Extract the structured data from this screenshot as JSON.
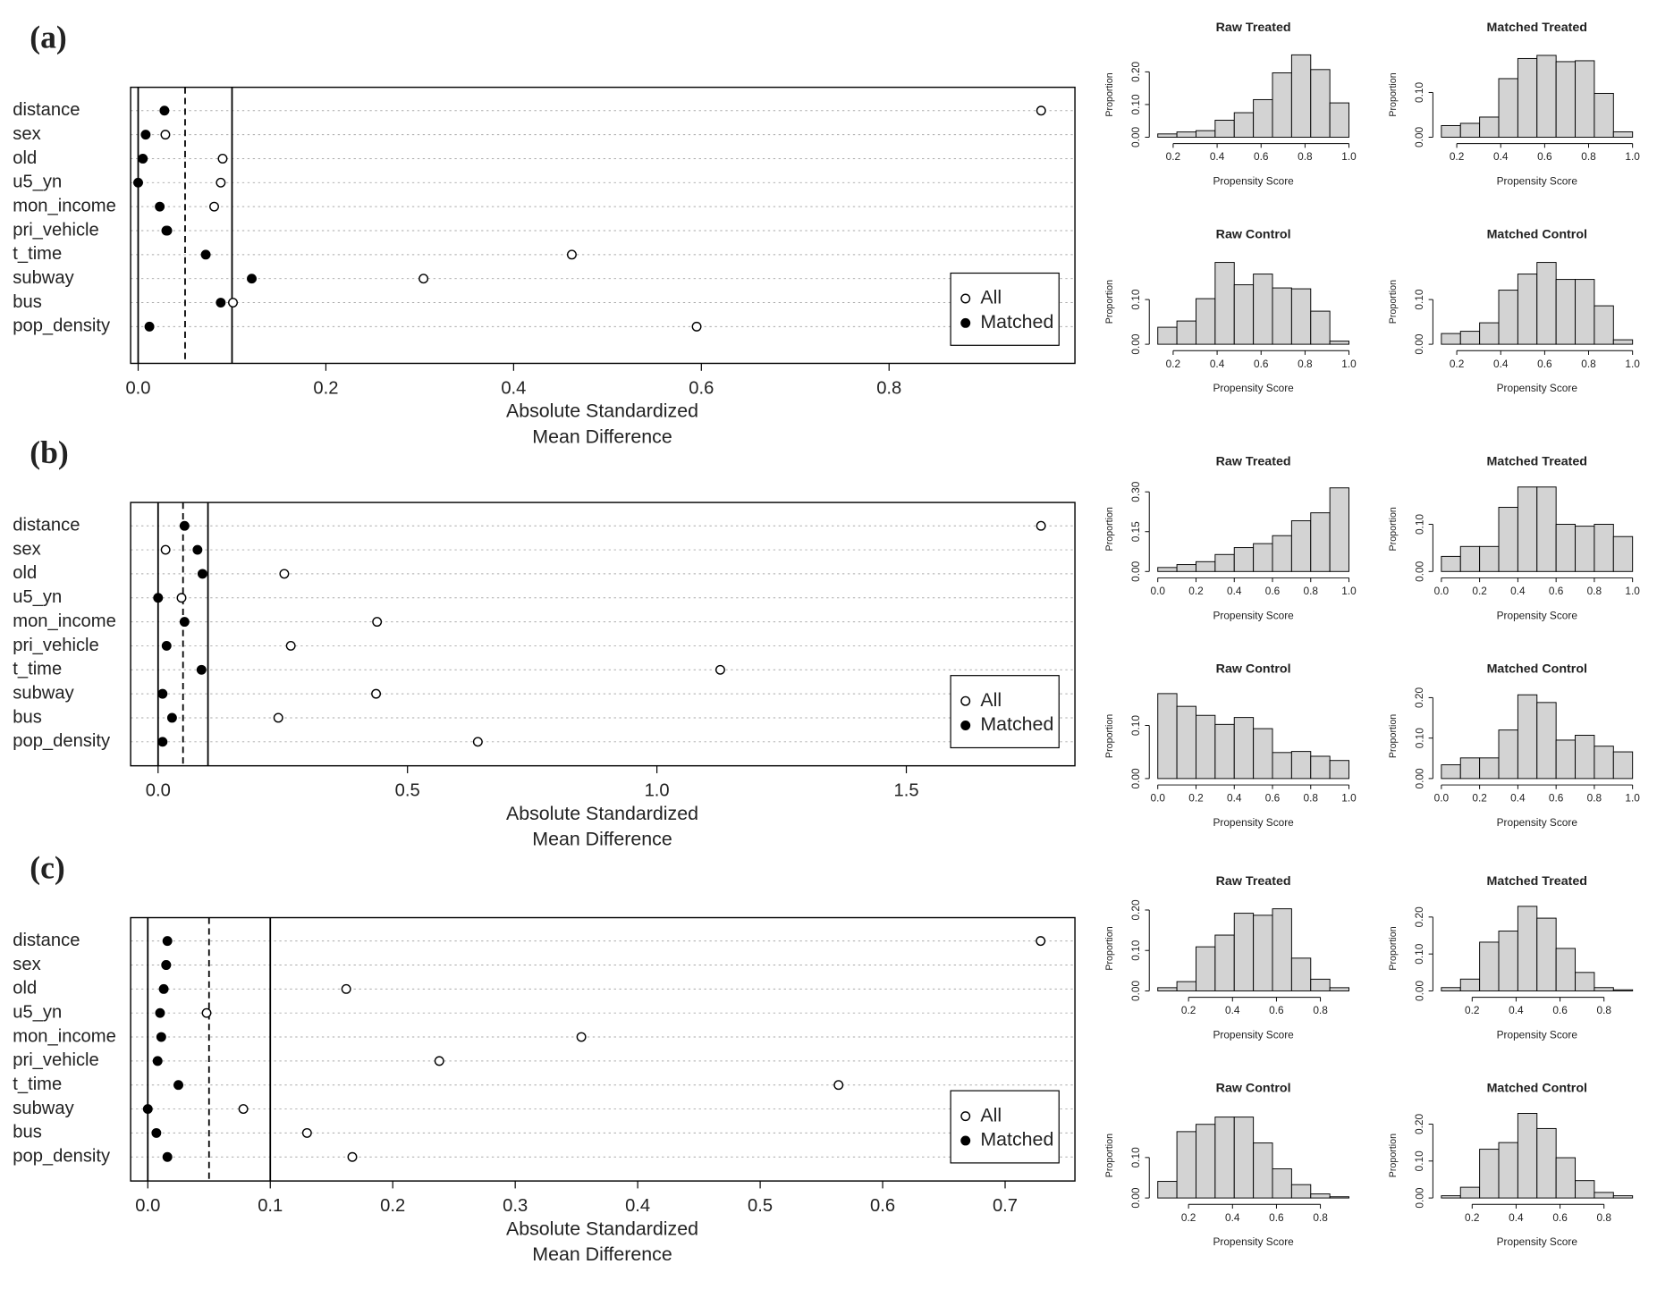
{
  "chart_data": [
    {
      "type": "dot",
      "label": "(a)",
      "xlabel": [
        "Absolute Standardized",
        "Mean Difference"
      ],
      "categories": [
        "distance",
        "sex",
        "old",
        "u5_yn",
        "mon_income",
        "pri_vehicle",
        "t_time",
        "subway",
        "bus",
        "pop_density"
      ],
      "series": [
        {
          "name": "All",
          "color": "#000000",
          "filled": false,
          "values": [
            0.962,
            0.029,
            0.09,
            0.088,
            0.081,
            0.03,
            0.462,
            0.304,
            0.101,
            0.595
          ]
        },
        {
          "name": "Matched",
          "color": "#000000",
          "filled": true,
          "values": [
            0.028,
            0.008,
            0.005,
            0.0,
            0.023,
            0.031,
            0.072,
            0.121,
            0.088,
            0.012
          ]
        }
      ],
      "xlim": [
        -0.008,
        0.998
      ],
      "xticks": [
        {
          "value": 0,
          "label": "0.0"
        },
        0.2,
        0.4,
        0.6,
        0.8
      ],
      "ref_lines": [
        {
          "value": 0,
          "dashed": false
        },
        {
          "value": 0.05,
          "dashed": true
        },
        {
          "value": 0.1,
          "dashed": false
        }
      ],
      "grid": true,
      "legend": "lower right"
    },
    {
      "type": "histogram",
      "title": "Raw Treated",
      "xlabel": "Propensity Score",
      "ylabel": "Proportion",
      "color": "#d3d3d3",
      "bins": [
        0.13,
        0.217,
        0.304,
        0.391,
        0.478,
        0.565,
        0.652,
        0.739,
        0.826,
        0.913,
        1.0
      ],
      "values": [
        0.01,
        0.016,
        0.02,
        0.052,
        0.075,
        0.115,
        0.197,
        0.252,
        0.207,
        0.105
      ],
      "xlim": [
        0.13,
        1.0
      ],
      "xticks": [
        0.2,
        0.4,
        0.6,
        0.8,
        {
          "value": 1,
          "label": "1.0"
        }
      ],
      "ylim": [
        0,
        0.26
      ],
      "yticks": [
        {
          "value": 0,
          "label": "0.00"
        },
        {
          "value": 0.1,
          "label": "0.10"
        },
        {
          "value": 0.2,
          "label": "0.20"
        }
      ]
    },
    {
      "type": "histogram",
      "title": "Matched Treated",
      "xlabel": "Propensity Score",
      "ylabel": "Proportion",
      "color": "#d3d3d3",
      "bins": [
        0.13,
        0.217,
        0.304,
        0.391,
        0.478,
        0.565,
        0.652,
        0.739,
        0.826,
        0.913,
        1.0
      ],
      "values": [
        0.026,
        0.031,
        0.045,
        0.131,
        0.176,
        0.183,
        0.169,
        0.171,
        0.098,
        0.012
      ],
      "xlim": [
        0.13,
        1.0
      ],
      "xticks": [
        0.2,
        0.4,
        0.6,
        0.8,
        {
          "value": 1,
          "label": "1.0"
        }
      ],
      "ylim": [
        0,
        0.19
      ],
      "yticks": [
        {
          "value": 0,
          "label": "0.00"
        },
        {
          "value": 0.1,
          "label": "0.10"
        }
      ]
    },
    {
      "type": "histogram",
      "title": "Raw Control",
      "xlabel": "Propensity Score",
      "ylabel": "Proportion",
      "color": "#d3d3d3",
      "bins": [
        0.13,
        0.217,
        0.304,
        0.391,
        0.478,
        0.565,
        0.652,
        0.739,
        0.826,
        0.913,
        1.0
      ],
      "values": [
        0.038,
        0.052,
        0.102,
        0.183,
        0.133,
        0.157,
        0.126,
        0.124,
        0.074,
        0.007
      ],
      "xlim": [
        0.13,
        1.0
      ],
      "xticks": [
        0.2,
        0.4,
        0.6,
        0.8,
        {
          "value": 1,
          "label": "1.0"
        }
      ],
      "ylim": [
        0,
        0.19
      ],
      "yticks": [
        {
          "value": 0,
          "label": "0.00"
        },
        {
          "value": 0.1,
          "label": "0.10"
        }
      ]
    },
    {
      "type": "histogram",
      "title": "Matched Control",
      "xlabel": "Propensity Score",
      "ylabel": "Proportion",
      "color": "#d3d3d3",
      "bins": [
        0.13,
        0.217,
        0.304,
        0.391,
        0.478,
        0.565,
        0.652,
        0.739,
        0.826,
        0.913,
        1.0
      ],
      "values": [
        0.024,
        0.029,
        0.048,
        0.121,
        0.157,
        0.183,
        0.145,
        0.145,
        0.086,
        0.01
      ],
      "xlim": [
        0.13,
        1.0
      ],
      "xticks": [
        0.2,
        0.4,
        0.6,
        0.8,
        {
          "value": 1,
          "label": "1.0"
        }
      ],
      "ylim": [
        0,
        0.19
      ],
      "yticks": [
        {
          "value": 0,
          "label": "0.00"
        },
        {
          "value": 0.1,
          "label": "0.10"
        }
      ]
    },
    {
      "type": "dot",
      "label": "(b)",
      "xlabel": [
        "Absolute Standardized",
        "Mean Difference"
      ],
      "categories": [
        "distance",
        "sex",
        "old",
        "u5_yn",
        "mon_income",
        "pri_vehicle",
        "t_time",
        "subway",
        "bus",
        "pop_density"
      ],
      "series": [
        {
          "name": "All",
          "color": "#000000",
          "filled": false,
          "values": [
            1.77,
            0.015,
            0.253,
            0.047,
            0.439,
            0.266,
            1.127,
            0.437,
            0.241,
            0.641
          ]
        },
        {
          "name": "Matched",
          "color": "#000000",
          "filled": true,
          "values": [
            0.053,
            0.079,
            0.089,
            0.0,
            0.053,
            0.017,
            0.087,
            0.009,
            0.028,
            0.009
          ]
        }
      ],
      "xlim": [
        -0.055,
        1.838
      ],
      "xticks": [
        {
          "value": 0,
          "label": "0.0"
        },
        0.5,
        {
          "value": 1,
          "label": "1.0"
        },
        1.5
      ],
      "ref_lines": [
        {
          "value": 0,
          "dashed": false
        },
        {
          "value": 0.05,
          "dashed": true
        },
        {
          "value": 0.1,
          "dashed": false
        }
      ],
      "grid": true,
      "legend": "lower right"
    },
    {
      "type": "histogram",
      "title": "Raw Treated",
      "xlabel": "Propensity Score",
      "ylabel": "Proportion",
      "color": "#d3d3d3",
      "bins": [
        0,
        0.1,
        0.2,
        0.3,
        0.4,
        0.5,
        0.6,
        0.7,
        0.8,
        0.9,
        1.0
      ],
      "values": [
        0.015,
        0.026,
        0.037,
        0.064,
        0.09,
        0.105,
        0.135,
        0.191,
        0.221,
        0.315
      ],
      "xlim": [
        0,
        1
      ],
      "xticks": [
        {
          "value": 0,
          "label": "0.0"
        },
        0.2,
        0.4,
        0.6,
        0.8,
        {
          "value": 1,
          "label": "1.0"
        }
      ],
      "ylim": [
        0,
        0.32
      ],
      "yticks": [
        {
          "value": 0,
          "label": "0.00"
        },
        0.15,
        {
          "value": 0.3,
          "label": "0.30"
        }
      ]
    },
    {
      "type": "histogram",
      "title": "Matched Treated",
      "xlabel": "Propensity Score",
      "ylabel": "Proportion",
      "color": "#d3d3d3",
      "bins": [
        0,
        0.1,
        0.2,
        0.3,
        0.4,
        0.5,
        0.6,
        0.7,
        0.8,
        0.9,
        1.0
      ],
      "values": [
        0.032,
        0.053,
        0.053,
        0.136,
        0.179,
        0.179,
        0.1,
        0.096,
        0.1,
        0.074
      ],
      "xlim": [
        0,
        1
      ],
      "xticks": [
        {
          "value": 0,
          "label": "0.0"
        },
        0.2,
        0.4,
        0.6,
        0.8,
        {
          "value": 1,
          "label": "1.0"
        }
      ],
      "ylim": [
        0,
        0.18
      ],
      "yticks": [
        {
          "value": 0,
          "label": "0.00"
        },
        {
          "value": 0.1,
          "label": "0.10"
        }
      ]
    },
    {
      "type": "histogram",
      "title": "Raw Control",
      "xlabel": "Propensity Score",
      "ylabel": "Proportion",
      "color": "#d3d3d3",
      "bins": [
        0,
        0.1,
        0.2,
        0.3,
        0.4,
        0.5,
        0.6,
        0.7,
        0.8,
        0.9,
        1.0
      ],
      "values": [
        0.16,
        0.136,
        0.119,
        0.102,
        0.115,
        0.094,
        0.049,
        0.051,
        0.042,
        0.034
      ],
      "xlim": [
        0,
        1
      ],
      "xticks": [
        {
          "value": 0,
          "label": "0.0"
        },
        0.2,
        0.4,
        0.6,
        0.8,
        {
          "value": 1,
          "label": "1.0"
        }
      ],
      "ylim": [
        0,
        0.16
      ],
      "yticks": [
        {
          "value": 0,
          "label": "0.00"
        },
        {
          "value": 0.1,
          "label": "0.10"
        }
      ]
    },
    {
      "type": "histogram",
      "title": "Matched Control",
      "xlabel": "Propensity Score",
      "ylabel": "Proportion",
      "color": "#d3d3d3",
      "bins": [
        0,
        0.1,
        0.2,
        0.3,
        0.4,
        0.5,
        0.6,
        0.7,
        0.8,
        0.9,
        1.0
      ],
      "values": [
        0.034,
        0.051,
        0.051,
        0.12,
        0.207,
        0.188,
        0.095,
        0.107,
        0.08,
        0.066
      ],
      "xlim": [
        0,
        1
      ],
      "xticks": [
        {
          "value": 0,
          "label": "0.0"
        },
        0.2,
        0.4,
        0.6,
        0.8,
        {
          "value": 1,
          "label": "1.0"
        }
      ],
      "ylim": [
        0,
        0.21
      ],
      "yticks": [
        {
          "value": 0,
          "label": "0.00"
        },
        {
          "value": 0.1,
          "label": "0.10"
        },
        {
          "value": 0.2,
          "label": "0.20"
        }
      ]
    },
    {
      "type": "dot",
      "label": "(c)",
      "xlabel": [
        "Absolute Standardized",
        "Mean Difference"
      ],
      "categories": [
        "distance",
        "sex",
        "old",
        "u5_yn",
        "mon_income",
        "pri_vehicle",
        "t_time",
        "subway",
        "bus",
        "pop_density"
      ],
      "series": [
        {
          "name": "All",
          "color": "#000000",
          "filled": false,
          "values": [
            0.729,
            0.015,
            0.162,
            0.048,
            0.354,
            0.238,
            0.564,
            0.078,
            0.13,
            0.167
          ]
        },
        {
          "name": "Matched",
          "color": "#000000",
          "filled": true,
          "values": [
            0.016,
            0.015,
            0.013,
            0.01,
            0.011,
            0.008,
            0.025,
            0.0,
            0.007,
            0.016
          ]
        }
      ],
      "xlim": [
        -0.014,
        0.757
      ],
      "xticks": [
        {
          "value": 0,
          "label": "0.0"
        },
        0.1,
        0.2,
        0.3,
        0.4,
        0.5,
        0.6,
        0.7
      ],
      "ref_lines": [
        {
          "value": 0,
          "dashed": false
        },
        {
          "value": 0.05,
          "dashed": true
        },
        {
          "value": 0.1,
          "dashed": false
        }
      ],
      "grid": true,
      "legend": "lower right"
    },
    {
      "type": "histogram",
      "title": "Raw Treated",
      "xlabel": "Propensity Score",
      "ylabel": "Proportion",
      "color": "#d3d3d3",
      "bins": [
        0.06,
        0.147,
        0.234,
        0.321,
        0.408,
        0.495,
        0.582,
        0.669,
        0.756,
        0.843,
        0.93
      ],
      "values": [
        0.008,
        0.023,
        0.109,
        0.138,
        0.192,
        0.187,
        0.203,
        0.081,
        0.029,
        0.008
      ],
      "xlim": [
        0.06,
        0.93
      ],
      "xticks": [
        0.2,
        0.4,
        0.6,
        0.8
      ],
      "ylim": [
        0,
        0.21
      ],
      "yticks": [
        {
          "value": 0,
          "label": "0.00"
        },
        {
          "value": 0.1,
          "label": "0.10"
        },
        {
          "value": 0.2,
          "label": "0.20"
        }
      ]
    },
    {
      "type": "histogram",
      "title": "Matched Treated",
      "xlabel": "Propensity Score",
      "ylabel": "Proportion",
      "color": "#d3d3d3",
      "bins": [
        0.06,
        0.147,
        0.234,
        0.321,
        0.408,
        0.495,
        0.582,
        0.669,
        0.756,
        0.843,
        0.93
      ],
      "values": [
        0.009,
        0.032,
        0.132,
        0.162,
        0.229,
        0.197,
        0.115,
        0.05,
        0.009,
        0.003
      ],
      "xlim": [
        0.06,
        0.93
      ],
      "xticks": [
        0.2,
        0.4,
        0.6,
        0.8
      ],
      "ylim": [
        0,
        0.23
      ],
      "yticks": [
        {
          "value": 0,
          "label": "0.00"
        },
        {
          "value": 0.1,
          "label": "0.10"
        },
        {
          "value": 0.2,
          "label": "0.20"
        }
      ]
    },
    {
      "type": "histogram",
      "title": "Raw Control",
      "xlabel": "Propensity Score",
      "ylabel": "Proportion",
      "color": "#d3d3d3",
      "bins": [
        0.06,
        0.147,
        0.234,
        0.321,
        0.408,
        0.495,
        0.582,
        0.669,
        0.756,
        0.843,
        0.93
      ],
      "values": [
        0.041,
        0.164,
        0.182,
        0.2,
        0.2,
        0.136,
        0.072,
        0.033,
        0.01,
        0.003
      ],
      "xlim": [
        0.06,
        0.93
      ],
      "xticks": [
        0.2,
        0.4,
        0.6,
        0.8
      ],
      "ylim": [
        0,
        0.21
      ],
      "yticks": [
        {
          "value": 0,
          "label": "0.00"
        },
        {
          "value": 0.1,
          "label": "0.10"
        }
      ]
    },
    {
      "type": "histogram",
      "title": "Matched Control",
      "xlabel": "Propensity Score",
      "ylabel": "Proportion",
      "color": "#d3d3d3",
      "bins": [
        0.06,
        0.147,
        0.234,
        0.321,
        0.408,
        0.495,
        0.582,
        0.669,
        0.756,
        0.843,
        0.93
      ],
      "values": [
        0.006,
        0.029,
        0.132,
        0.15,
        0.229,
        0.188,
        0.109,
        0.047,
        0.015,
        0.006
      ],
      "xlim": [
        0.06,
        0.93
      ],
      "xticks": [
        0.2,
        0.4,
        0.6,
        0.8
      ],
      "ylim": [
        0,
        0.23
      ],
      "yticks": [
        {
          "value": 0,
          "label": "0.00"
        },
        {
          "value": 0.1,
          "label": "0.10"
        },
        {
          "value": 0.2,
          "label": "0.20"
        }
      ]
    }
  ]
}
